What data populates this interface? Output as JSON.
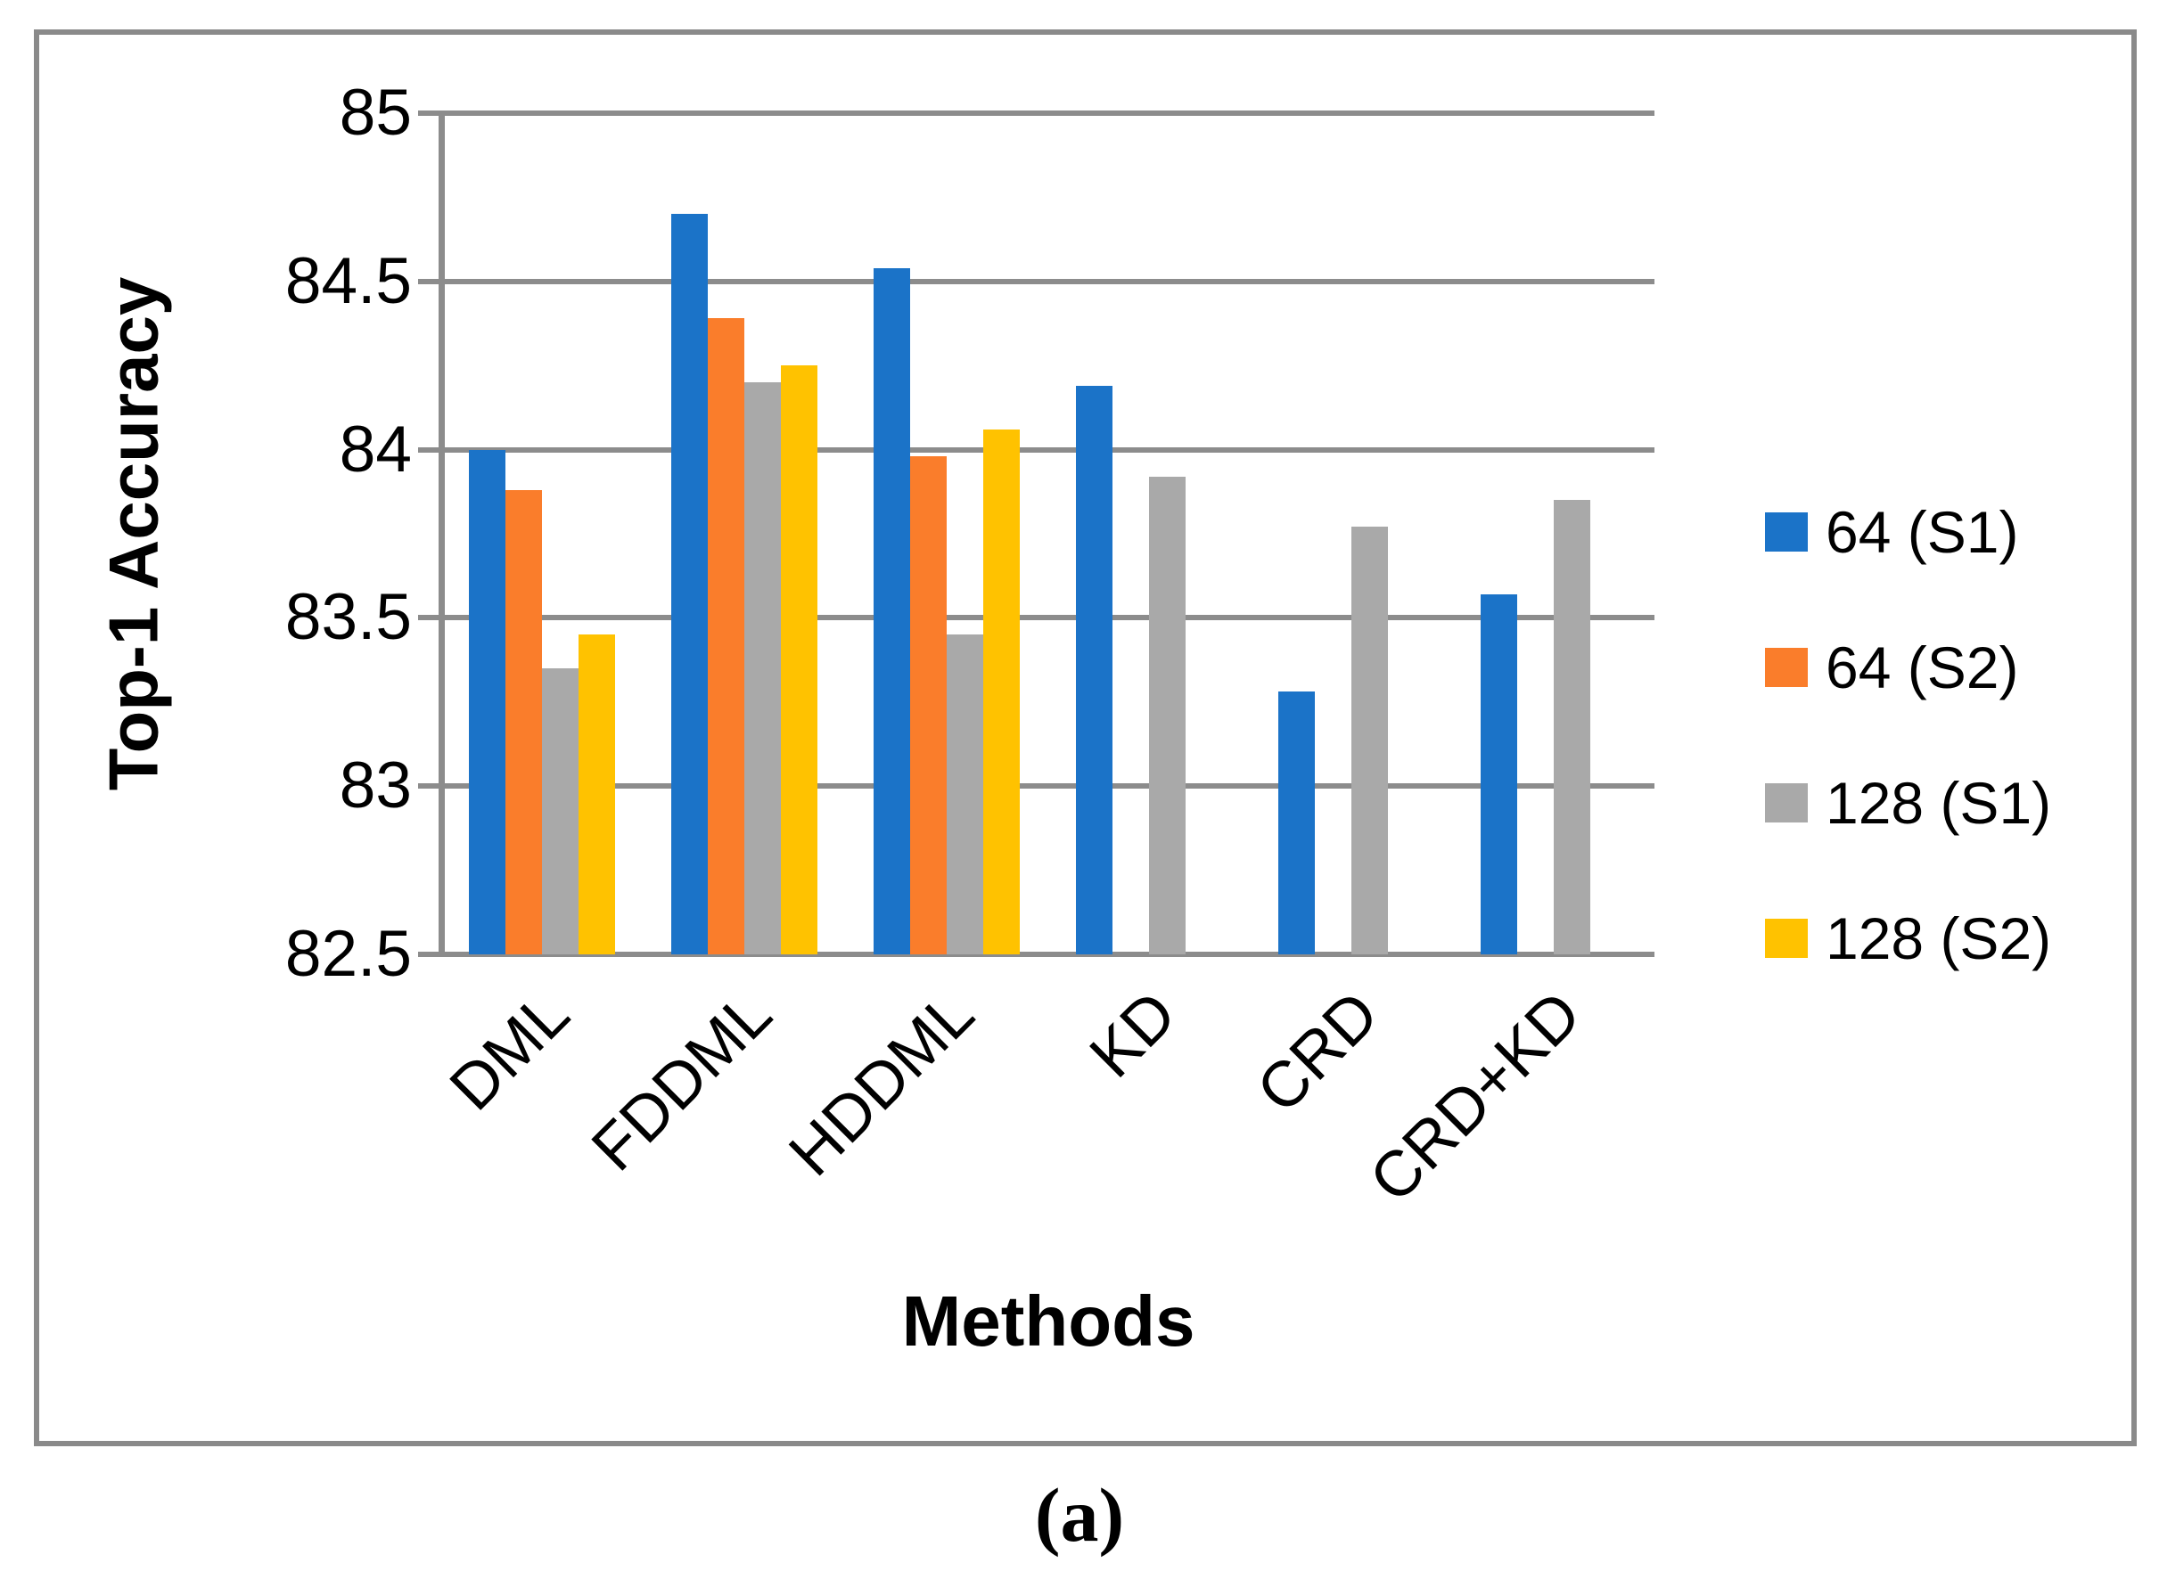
{
  "figure": {
    "caption": "(a)",
    "border_color": "#8A8A8A",
    "background": "#FFFFFF"
  },
  "chart_data": {
    "type": "bar",
    "title": "",
    "xlabel": "Methods",
    "ylabel": "Top-1 Accuracy",
    "categories": [
      "DML",
      "FDDML",
      "HDDML",
      "KD",
      "CRD",
      "CRD+KD"
    ],
    "series": [
      {
        "name": "64 (S1)",
        "color": "#1B73C8",
        "values": [
          84.0,
          84.7,
          84.54,
          84.19,
          83.28,
          83.57
        ]
      },
      {
        "name": "64 (S2)",
        "color": "#FA7D2B",
        "values": [
          83.88,
          84.39,
          83.98,
          null,
          null,
          null
        ]
      },
      {
        "name": "128 (S1)",
        "color": "#A9A9A9",
        "values": [
          83.35,
          84.2,
          83.45,
          83.92,
          83.77,
          83.85
        ]
      },
      {
        "name": "128 (S2)",
        "color": "#FFC200",
        "values": [
          83.45,
          84.25,
          84.06,
          null,
          null,
          null
        ]
      }
    ],
    "ylim": [
      82.5,
      85
    ],
    "ytick_step": 0.5,
    "yticks": [
      "85",
      "84.5",
      "84",
      "83.5",
      "83",
      "82.5"
    ],
    "grid": "horizontal",
    "legend_position": "right",
    "axis_color": "#8C8C8C"
  }
}
